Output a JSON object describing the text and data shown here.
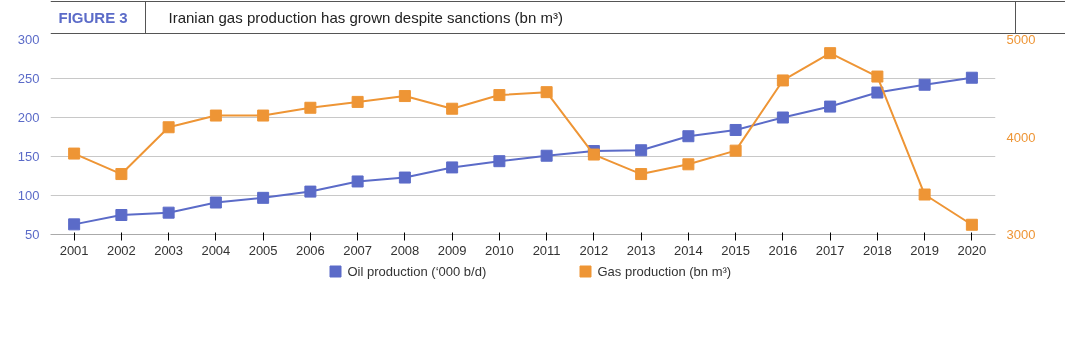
{
  "chart_data": {
    "type": "line",
    "title": "Iranian gas production has grown despite sanctions (bn m³)",
    "annotations": [
      "FIGURE 3"
    ],
    "categories": [
      "2001",
      "2002",
      "2003",
      "2004",
      "2005",
      "2006",
      "2007",
      "2008",
      "2009",
      "2010",
      "2011",
      "2012",
      "2013",
      "2014",
      "2015",
      "2016",
      "2017",
      "2018",
      "2019",
      "2020"
    ],
    "series": [
      {
        "name": "Oil production (‘000 b/d)",
        "color": "#5b6bc8",
        "values": [
          63,
          75,
          78,
          91,
          97,
          105,
          118,
          123,
          136,
          144,
          151,
          157,
          158,
          176,
          184,
          200,
          214,
          232,
          242,
          251
        ]
      },
      {
        "name": "Gas production (bn m³)",
        "color": "#ee9535",
        "axis": "y2",
        "values": [
          3830,
          3620,
          4100,
          4220,
          4220,
          4300,
          4360,
          4420,
          4290,
          4430,
          4460,
          3820,
          3620,
          3720,
          3860,
          4580,
          4860,
          4620,
          3410,
          3100
        ]
      }
    ],
    "ylim": [
      50,
      300
    ],
    "yticks": [
      50,
      100,
      150,
      200,
      250,
      300
    ],
    "y2lim": [
      3000,
      5000
    ],
    "y2ticks": [
      3000,
      4000,
      5000
    ],
    "grid": "y",
    "legend": "bottom",
    "marker": "square",
    "line_style": "solid"
  }
}
